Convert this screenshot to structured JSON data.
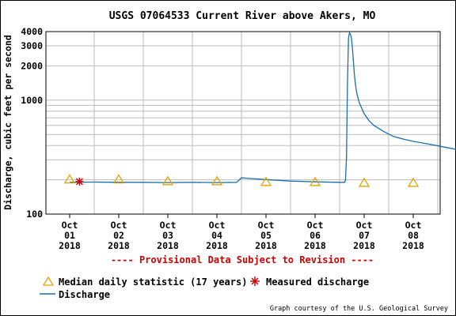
{
  "chart_data": {
    "type": "line",
    "title": "USGS 07064533 Current River above Akers, MO",
    "ylabel": "Discharge, cubic feet per second",
    "xlabel": "",
    "yscale": "log",
    "ylim": [
      100,
      4000
    ],
    "yticks": [
      "100",
      "1000",
      "2000",
      "3000",
      "4000"
    ],
    "x_tick_labels": [
      [
        "Oct",
        "01",
        "2018"
      ],
      [
        "Oct",
        "02",
        "2018"
      ],
      [
        "Oct",
        "03",
        "2018"
      ],
      [
        "Oct",
        "04",
        "2018"
      ],
      [
        "Oct",
        "05",
        "2018"
      ],
      [
        "Oct",
        "06",
        "2018"
      ],
      [
        "Oct",
        "07",
        "2018"
      ],
      [
        "Oct",
        "08",
        "2018"
      ]
    ],
    "grid": true,
    "line_color": "#1a6fa8",
    "median_color": "#e8a200",
    "measured_color": "#cc0000",
    "series": [
      {
        "name": "Discharge",
        "x_days": [
          0.0,
          0.5,
          1.0,
          1.5,
          2.0,
          2.5,
          3.0,
          3.4,
          3.5,
          3.7,
          4.0,
          4.5,
          5.0,
          5.5,
          5.6,
          5.62,
          5.64,
          5.66,
          5.68,
          5.7,
          5.72,
          5.74,
          5.76,
          5.78,
          5.8,
          5.82,
          5.85,
          5.9,
          6.0,
          6.1,
          6.2,
          6.4,
          6.6,
          6.8,
          7.0,
          7.2,
          7.4,
          7.6,
          7.8,
          7.9
        ],
        "values": [
          190,
          191,
          190,
          190,
          189,
          190,
          189,
          190,
          208,
          205,
          201,
          195,
          192,
          190,
          190,
          198,
          320,
          1400,
          3500,
          3900,
          3800,
          3500,
          2900,
          2200,
          1700,
          1400,
          1150,
          950,
          760,
          660,
          600,
          530,
          480,
          455,
          435,
          420,
          405,
          390,
          375,
          368
        ]
      },
      {
        "name": "Median daily statistic (17 years)",
        "x_days": [
          0.0,
          1.0,
          2.0,
          3.0,
          4.0,
          5.0,
          6.0,
          7.0
        ],
        "values": [
          200,
          200,
          193,
          193,
          190,
          190,
          187,
          187
        ]
      },
      {
        "name": "Measured discharge",
        "x_days": [
          0.2
        ],
        "values": [
          193
        ]
      }
    ]
  },
  "provisional_note": "---- Provisional Data Subject to Revision ----",
  "legend": {
    "median": "Median daily statistic (17 years)",
    "measured": "Measured discharge",
    "discharge": "Discharge"
  },
  "credit": "Graph courtesy of the U.S. Geological Survey"
}
